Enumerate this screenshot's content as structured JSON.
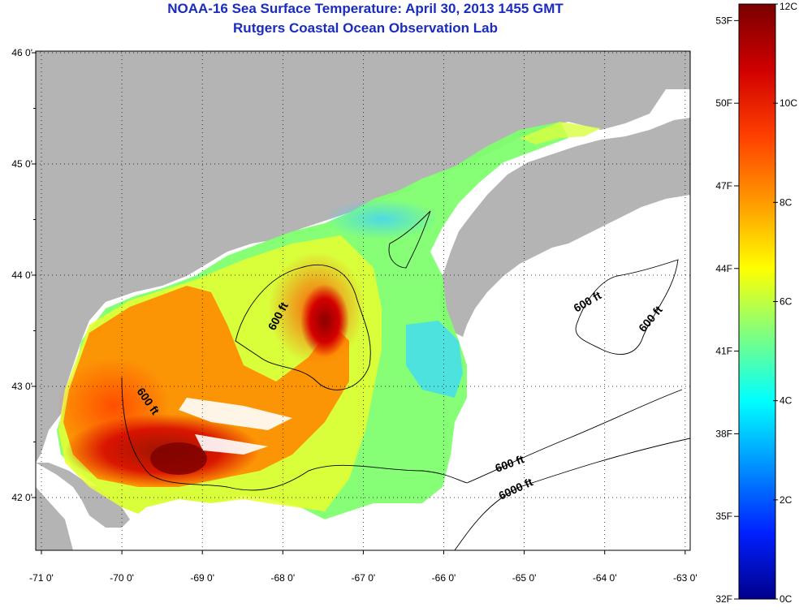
{
  "title_line1": "NOAA-16 Sea Surface Temperature:  April 30, 2013 1455 GMT",
  "title_line2": "Rutgers Coastal Ocean Observation Lab",
  "lat_labels": [
    "46 0'",
    "45 0'",
    "44 0'",
    "43 0'",
    "42 0'"
  ],
  "lon_labels": [
    "-71 0'",
    "-70 0'",
    "-69 0'",
    "-68 0'",
    "-67 0'",
    "-66 0'",
    "-65 0'",
    "-64 0'",
    "-63 0'"
  ],
  "contour_labels": [
    "600 ft",
    "600 ft",
    "600 ft",
    "600 ft",
    "600 ft",
    "6000 ft"
  ],
  "colorbar": {
    "celsius_labels": [
      "12C",
      "10C",
      "8C",
      "6C",
      "4C",
      "2C",
      "0C"
    ],
    "fahrenheit_labels": [
      "53F",
      "50F",
      "47F",
      "44F",
      "41F",
      "38F",
      "35F",
      "32F"
    ],
    "colors": [
      "#7a0000",
      "#d00000",
      "#ff4000",
      "#ff9a00",
      "#ffff00",
      "#7fff7f",
      "#00ffff",
      "#0090ff",
      "#0020ff",
      "#00008a"
    ]
  },
  "colors": {
    "land": "#b4b4b4",
    "ocean_nodata": "#ffffff",
    "title": "#1a2bbf"
  }
}
